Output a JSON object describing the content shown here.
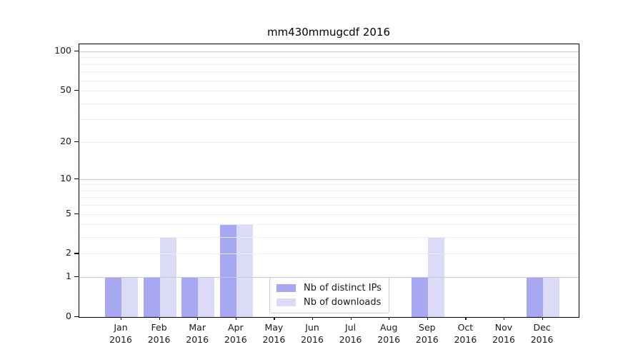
{
  "chart_data": {
    "type": "bar",
    "title": "mm430mmugcdf 2016",
    "x_months": [
      "Jan",
      "Feb",
      "Mar",
      "Apr",
      "May",
      "Jun",
      "Jul",
      "Aug",
      "Sep",
      "Oct",
      "Nov",
      "Dec"
    ],
    "x_year": "2016",
    "series": [
      {
        "name": "Nb of distinct IPs",
        "color": "#a8a8f2",
        "values": [
          1,
          1,
          1,
          4,
          0,
          0,
          0,
          0,
          1,
          0,
          0,
          1
        ]
      },
      {
        "name": "Nb of downloads",
        "color": "#dbdbf8",
        "values": [
          1,
          3,
          1,
          4,
          0,
          0,
          0,
          0,
          3,
          0,
          0,
          1
        ]
      }
    ],
    "y_axis": {
      "scale": "log10(1+y)",
      "tick_values": [
        0,
        1,
        2,
        5,
        10,
        20,
        50,
        100
      ],
      "tick_labels": [
        "0",
        "1",
        "2",
        "5",
        "10",
        "20",
        "50",
        "100"
      ],
      "major_grid_values": [
        1,
        10,
        100
      ],
      "minor_grid_values": [
        2,
        3,
        4,
        5,
        6,
        7,
        8,
        9,
        20,
        30,
        40,
        50,
        60,
        70,
        80,
        90
      ],
      "top_value": 100
    },
    "legend_position": "lower center",
    "colors": {
      "major_grid": "#c9c9c9",
      "minor_grid": "#ececec",
      "spine": "#000000",
      "text": "#1a1a1a",
      "background": "#ffffff"
    }
  }
}
